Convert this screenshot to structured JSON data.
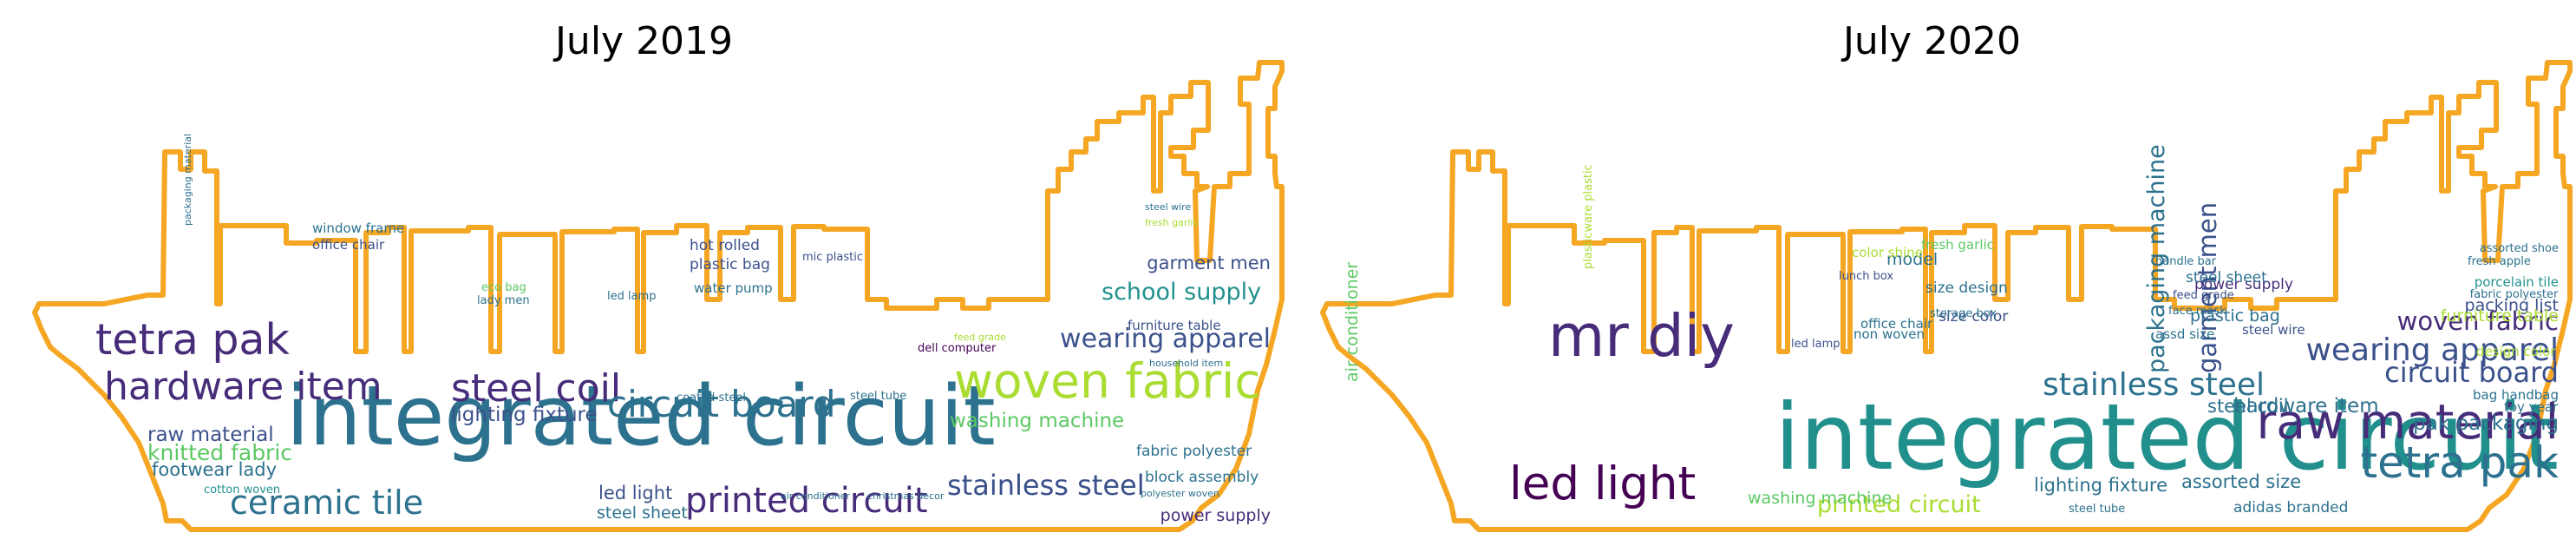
{
  "colors": {
    "outline": "#f5a623",
    "background": "#ffffff",
    "palette": [
      "#440154",
      "#472c7a",
      "#3b518b",
      "#2c718e",
      "#21908d",
      "#27ad81",
      "#5cc863",
      "#aadc32",
      "#fde725"
    ]
  },
  "panels": [
    {
      "title": "July 2019",
      "words": [
        {
          "text": "integrated circuit",
          "weight": 100,
          "c": 3
        },
        {
          "text": "woven fabric",
          "weight": 58,
          "c": 7
        },
        {
          "text": "tetra pak",
          "weight": 52,
          "c": 1
        },
        {
          "text": "hardware item",
          "weight": 46,
          "c": 1
        },
        {
          "text": "steel coil",
          "weight": 46,
          "c": 1
        },
        {
          "text": "circuit board",
          "weight": 44,
          "c": 3
        },
        {
          "text": "printed circuit",
          "weight": 42,
          "c": 1
        },
        {
          "text": "ceramic tile",
          "weight": 40,
          "c": 3
        },
        {
          "text": "stainless steel",
          "weight": 34,
          "c": 2
        },
        {
          "text": "wearing apparel",
          "weight": 32,
          "c": 2
        },
        {
          "text": "school supply",
          "weight": 28,
          "c": 4
        },
        {
          "text": "knitted fabric",
          "weight": 26,
          "c": 6
        },
        {
          "text": "raw material",
          "weight": 24,
          "c": 2
        },
        {
          "text": "lighting fixture",
          "weight": 24,
          "c": 2
        },
        {
          "text": "footwear lady",
          "weight": 22,
          "c": 3
        },
        {
          "text": "washing machine",
          "weight": 24,
          "c": 6
        },
        {
          "text": "garment men",
          "weight": 22,
          "c": 2
        },
        {
          "text": "led light",
          "weight": 22,
          "c": 2
        },
        {
          "text": "steel sheet",
          "weight": 20,
          "c": 3
        },
        {
          "text": "power supply",
          "weight": 20,
          "c": 1
        },
        {
          "text": "fabric polyester",
          "weight": 18,
          "c": 3
        },
        {
          "text": "block assembly",
          "weight": 18,
          "c": 3
        },
        {
          "text": "plastic bag",
          "weight": 18,
          "c": 2
        },
        {
          "text": "hot rolled",
          "weight": 18,
          "c": 2
        },
        {
          "text": "window frame",
          "weight": 16,
          "c": 3
        },
        {
          "text": "office chair",
          "weight": 16,
          "c": 2
        },
        {
          "text": "water pump",
          "weight": 16,
          "c": 3
        },
        {
          "text": "lady men",
          "weight": 14,
          "c": 3
        },
        {
          "text": "eco bag",
          "weight": 14,
          "c": 6
        },
        {
          "text": "led lamp",
          "weight": 14,
          "c": 3
        },
        {
          "text": "furniture table",
          "weight": 16,
          "c": 2
        },
        {
          "text": "dell computer",
          "weight": 14,
          "c": 0
        },
        {
          "text": "cotton woven",
          "weight": 14,
          "c": 4
        },
        {
          "text": "steel tube",
          "weight": 14,
          "c": 3
        },
        {
          "text": "coated steel",
          "weight": 14,
          "c": 3
        },
        {
          "text": "household item",
          "weight": 12,
          "c": 3
        },
        {
          "text": "fresh garlic",
          "weight": 12,
          "c": 7
        },
        {
          "text": "steel wire",
          "weight": 12,
          "c": 3
        },
        {
          "text": "mic plastic",
          "weight": 14,
          "c": 2
        },
        {
          "text": "polyester woven",
          "weight": 12,
          "c": 3
        },
        {
          "text": "air conditioner",
          "weight": 12,
          "c": 3
        },
        {
          "text": "christmas decor",
          "weight": 12,
          "c": 3
        },
        {
          "text": "feed grade",
          "weight": 12,
          "c": 7
        },
        {
          "text": "packaging material",
          "weight": 12,
          "c": 3
        }
      ]
    },
    {
      "title": "July 2020",
      "words": [
        {
          "text": "integrated circuit",
          "weight": 100,
          "c": 4
        },
        {
          "text": "mr diy",
          "weight": 64,
          "c": 1
        },
        {
          "text": "raw material",
          "weight": 52,
          "c": 1
        },
        {
          "text": "led light",
          "weight": 50,
          "c": 0
        },
        {
          "text": "tetra pak",
          "weight": 48,
          "c": 3
        },
        {
          "text": "stainless steel",
          "weight": 34,
          "c": 3
        },
        {
          "text": "wearing apparel",
          "weight": 34,
          "c": 2
        },
        {
          "text": "circuit board",
          "weight": 30,
          "c": 2
        },
        {
          "text": "woven fabric",
          "weight": 28,
          "c": 1
        },
        {
          "text": "garment men",
          "weight": 28,
          "c": 2
        },
        {
          "text": "packaging machine",
          "weight": 26,
          "c": 3
        },
        {
          "text": "printed circuit",
          "weight": 26,
          "c": 7
        },
        {
          "text": "hardware item",
          "weight": 22,
          "c": 3
        },
        {
          "text": "pak packaging",
          "weight": 22,
          "c": 3
        },
        {
          "text": "lighting fixture",
          "weight": 20,
          "c": 3
        },
        {
          "text": "assorted size",
          "weight": 20,
          "c": 3
        },
        {
          "text": "steel coil",
          "weight": 20,
          "c": 3
        },
        {
          "text": "plastic bag",
          "weight": 18,
          "c": 3
        },
        {
          "text": "model",
          "weight": 18,
          "c": 3
        },
        {
          "text": "power supply",
          "weight": 16,
          "c": 1
        },
        {
          "text": "steel sheet",
          "weight": 16,
          "c": 3
        },
        {
          "text": "size color",
          "weight": 16,
          "c": 2
        },
        {
          "text": "size design",
          "weight": 16,
          "c": 3
        },
        {
          "text": "packing list",
          "weight": 18,
          "c": 2
        },
        {
          "text": "furniture table",
          "weight": 18,
          "c": 7
        },
        {
          "text": "washing machine",
          "weight": 18,
          "c": 6
        },
        {
          "text": "adidas branded",
          "weight": 16,
          "c": 3
        },
        {
          "text": "air conditioner",
          "weight": 18,
          "c": 6
        },
        {
          "text": "bag handbag",
          "weight": 14,
          "c": 3
        },
        {
          "text": "toy year",
          "weight": 14,
          "c": 3
        },
        {
          "text": "steel wire",
          "weight": 14,
          "c": 2
        },
        {
          "text": "storage box",
          "weight": 12,
          "c": 3
        },
        {
          "text": "fresh garlic",
          "weight": 14,
          "c": 6
        },
        {
          "text": "office chair",
          "weight": 14,
          "c": 3
        },
        {
          "text": "non woven",
          "weight": 14,
          "c": 3
        },
        {
          "text": "led lamp",
          "weight": 12,
          "c": 2
        },
        {
          "text": "steel tube",
          "weight": 12,
          "c": 3
        },
        {
          "text": "handle bar",
          "weight": 12,
          "c": 3
        },
        {
          "text": "feed grade",
          "weight": 12,
          "c": 2
        },
        {
          "text": "face mask",
          "weight": 12,
          "c": 3
        },
        {
          "text": "color shine",
          "weight": 14,
          "c": 7
        },
        {
          "text": "fresh apple",
          "weight": 12,
          "c": 3
        },
        {
          "text": "porcelain tile",
          "weight": 14,
          "c": 4
        },
        {
          "text": "fabric polyester",
          "weight": 12,
          "c": 3
        },
        {
          "text": "lunch box",
          "weight": 12,
          "c": 2
        },
        {
          "text": "assorted shoe",
          "weight": 12,
          "c": 3
        },
        {
          "text": "plasticware plastic",
          "weight": 12,
          "c": 7
        },
        {
          "text": "assd size",
          "weight": 14,
          "c": 3
        },
        {
          "text": "design color",
          "weight": 14,
          "c": 7
        }
      ]
    }
  ]
}
